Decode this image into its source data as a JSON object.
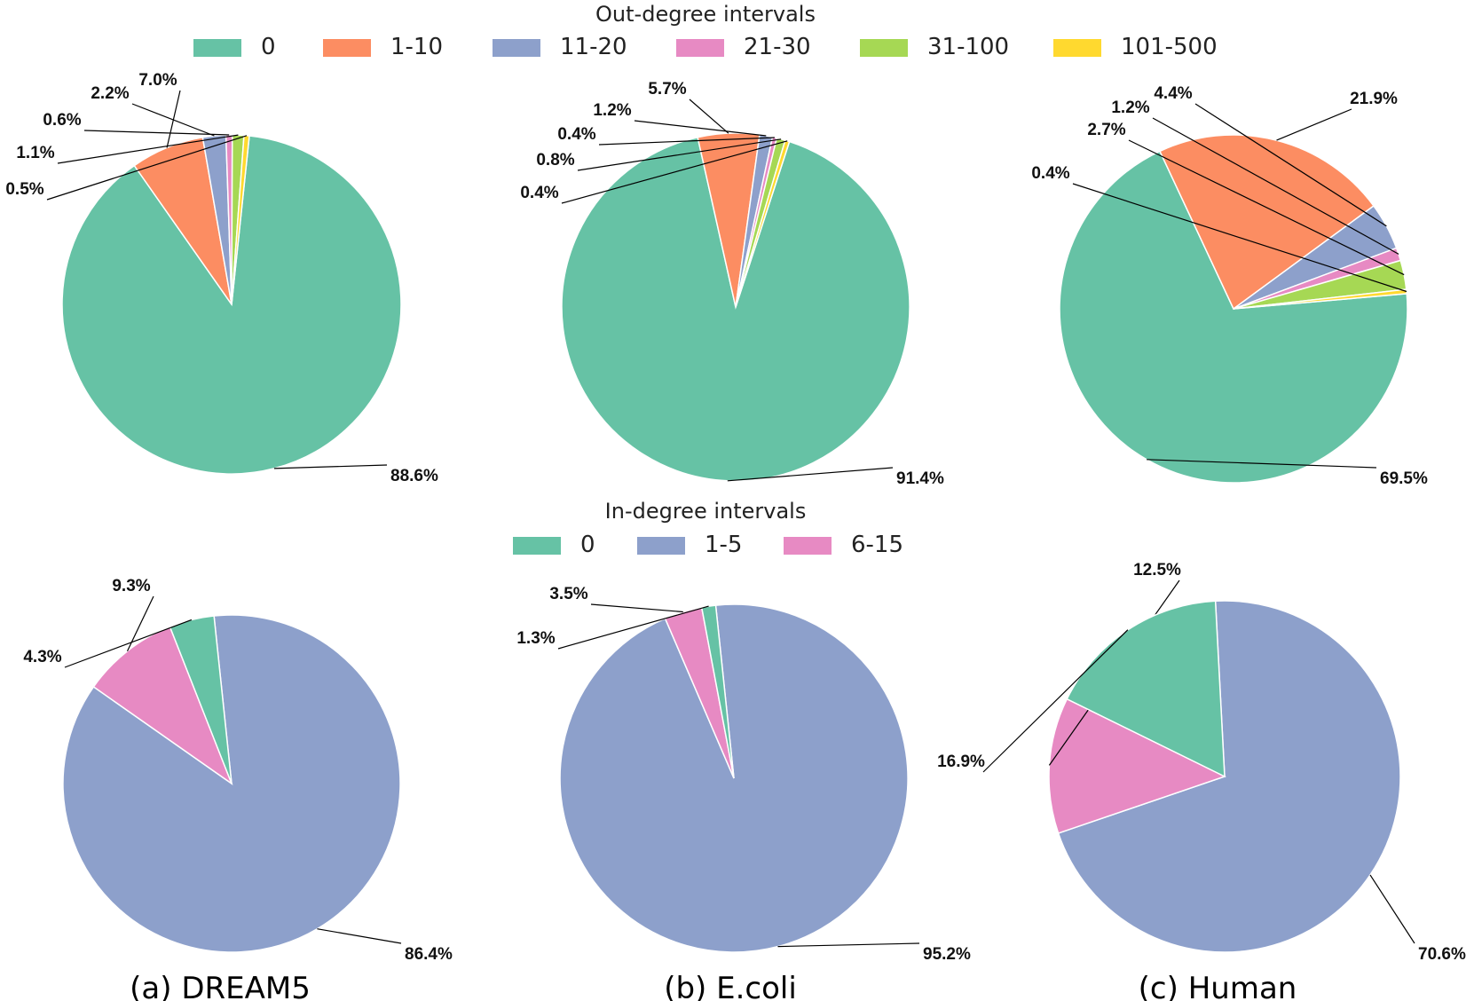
{
  "chart_data": {
    "type": "pie",
    "legends": {
      "out_degree": {
        "title": "Out-degree intervals",
        "entries": [
          {
            "label": "0",
            "color": "#66c2a5"
          },
          {
            "label": "1-10",
            "color": "#fc8d62"
          },
          {
            "label": "11-20",
            "color": "#8da0cb"
          },
          {
            "label": "21-30",
            "color": "#e78ac3"
          },
          {
            "label": "31-100",
            "color": "#a6d854"
          },
          {
            "label": "101-500",
            "color": "#ffd92f"
          }
        ]
      },
      "in_degree": {
        "title": "In-degree intervals",
        "entries": [
          {
            "label": "0",
            "color": "#66c2a5"
          },
          {
            "label": "1-5",
            "color": "#8da0cb"
          },
          {
            "label": "6-15",
            "color": "#e78ac3"
          }
        ]
      }
    },
    "datasets": [
      "(a) DREAM5",
      "(b) E.coli",
      "(c) Human"
    ],
    "out_degree": [
      {
        "dataset": "DREAM5",
        "slices": [
          {
            "category": "0",
            "value": 88.6,
            "label": "88.6%"
          },
          {
            "category": "1-10",
            "value": 7.0,
            "label": "7.0%"
          },
          {
            "category": "11-20",
            "value": 2.2,
            "label": "2.2%"
          },
          {
            "category": "21-30",
            "value": 0.6,
            "label": "0.6%"
          },
          {
            "category": "31-100",
            "value": 1.1,
            "label": "1.1%"
          },
          {
            "category": "101-500",
            "value": 0.5,
            "label": "0.5%"
          }
        ]
      },
      {
        "dataset": "E.coli",
        "slices": [
          {
            "category": "0",
            "value": 91.4,
            "label": "91.4%"
          },
          {
            "category": "1-10",
            "value": 5.7,
            "label": "5.7%"
          },
          {
            "category": "11-20",
            "value": 1.2,
            "label": "1.2%"
          },
          {
            "category": "21-30",
            "value": 0.4,
            "label": "0.4%"
          },
          {
            "category": "31-100",
            "value": 0.8,
            "label": "0.8%"
          },
          {
            "category": "101-500",
            "value": 0.4,
            "label": "0.4%"
          }
        ]
      },
      {
        "dataset": "Human",
        "slices": [
          {
            "category": "0",
            "value": 69.5,
            "label": "69.5%"
          },
          {
            "category": "1-10",
            "value": 21.9,
            "label": "21.9%"
          },
          {
            "category": "11-20",
            "value": 4.4,
            "label": "4.4%"
          },
          {
            "category": "21-30",
            "value": 1.2,
            "label": "1.2%"
          },
          {
            "category": "31-100",
            "value": 2.7,
            "label": "2.7%"
          },
          {
            "category": "101-500",
            "value": 0.4,
            "label": "0.4%"
          }
        ]
      }
    ],
    "in_degree": [
      {
        "dataset": "DREAM5",
        "slices": [
          {
            "category": "1-5",
            "value": 86.4,
            "label": "86.4%"
          },
          {
            "category": "6-15",
            "value": 9.3,
            "label": "9.3%"
          },
          {
            "category": "0",
            "value": 4.3,
            "label": "4.3%"
          }
        ]
      },
      {
        "dataset": "E.coli",
        "slices": [
          {
            "category": "1-5",
            "value": 95.2,
            "label": "95.2%"
          },
          {
            "category": "6-15",
            "value": 3.5,
            "label": "3.5%"
          },
          {
            "category": "0",
            "value": 1.3,
            "label": "1.3%"
          }
        ]
      },
      {
        "dataset": "Human",
        "slices": [
          {
            "category": "1-5",
            "value": 70.6,
            "label": "70.6%"
          },
          {
            "category": "6-15",
            "value": 12.5,
            "label": "12.5%"
          },
          {
            "category": "0",
            "value": 16.9,
            "label": "16.9%"
          }
        ]
      }
    ]
  }
}
